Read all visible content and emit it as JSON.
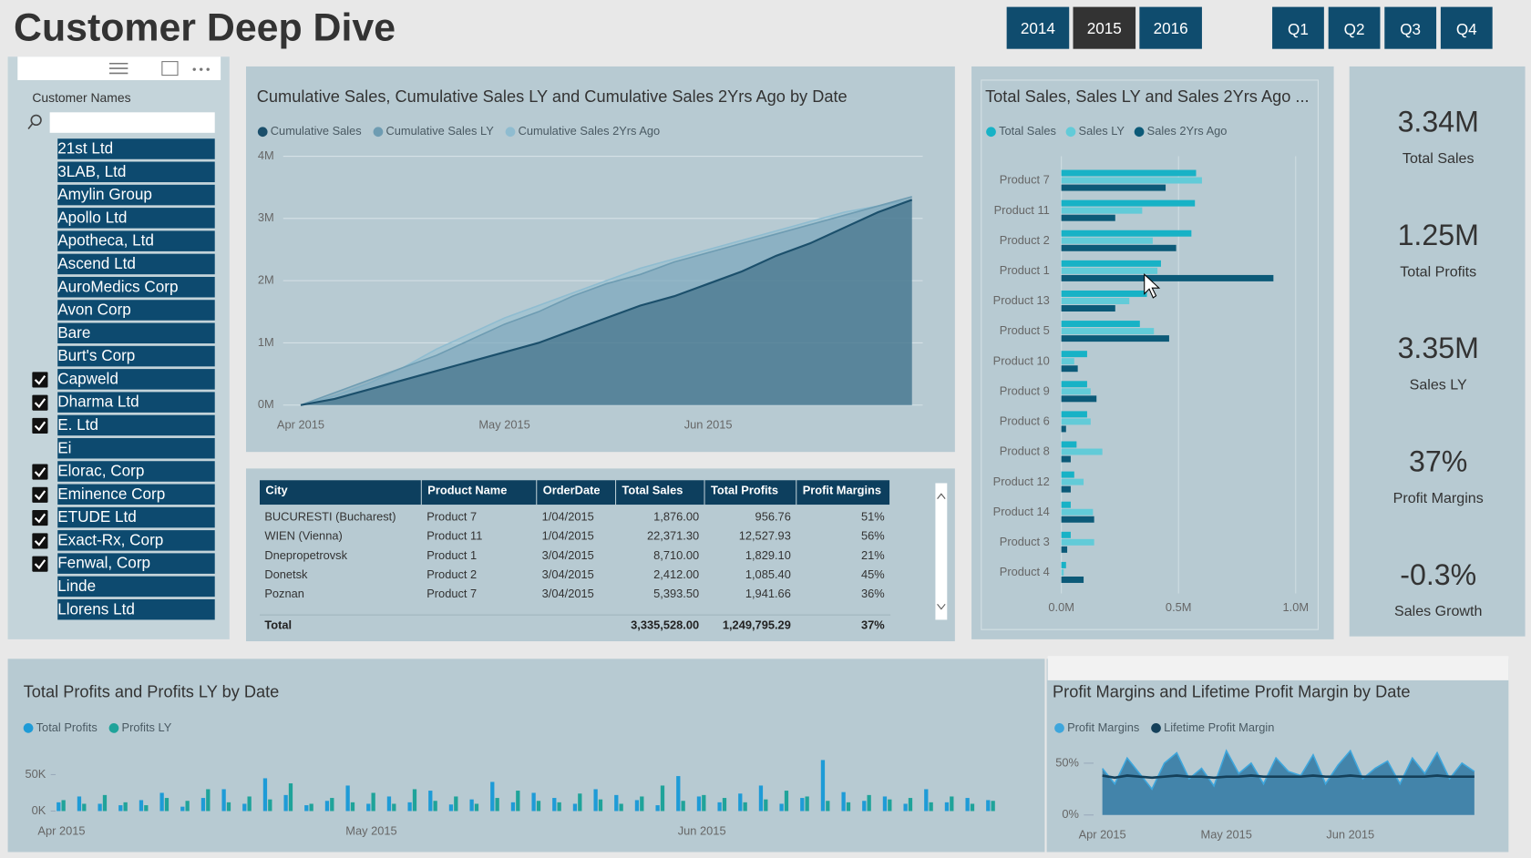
{
  "header": {
    "title": "Customer Deep Dive",
    "years": [
      "2014",
      "2015",
      "2016"
    ],
    "selected": "2015",
    "quarters": [
      "Q1",
      "Q2",
      "Q3",
      "Q4"
    ]
  },
  "slicer": {
    "label": "Customer Names",
    "items": [
      {
        "name": "21st Ltd",
        "checked": false
      },
      {
        "name": "3LAB, Ltd",
        "checked": false
      },
      {
        "name": "Amylin Group",
        "checked": false
      },
      {
        "name": "Apollo Ltd",
        "checked": false
      },
      {
        "name": "Apotheca, Ltd",
        "checked": false
      },
      {
        "name": "Ascend Ltd",
        "checked": false
      },
      {
        "name": "AuroMedics Corp",
        "checked": false
      },
      {
        "name": "Avon Corp",
        "checked": false
      },
      {
        "name": "Bare",
        "checked": false
      },
      {
        "name": "Burt's Corp",
        "checked": false
      },
      {
        "name": "Capweld",
        "checked": true
      },
      {
        "name": "Dharma Ltd",
        "checked": true
      },
      {
        "name": "E. Ltd",
        "checked": true
      },
      {
        "name": "Ei",
        "checked": false
      },
      {
        "name": "Elorac, Corp",
        "checked": true
      },
      {
        "name": "Eminence Corp",
        "checked": true
      },
      {
        "name": "ETUDE Ltd",
        "checked": true
      },
      {
        "name": "Exact-Rx, Corp",
        "checked": true
      },
      {
        "name": "Fenwal, Corp",
        "checked": true
      },
      {
        "name": "Linde",
        "checked": false
      },
      {
        "name": "Llorens Ltd",
        "checked": false
      }
    ]
  },
  "cumulative": {
    "type": "area",
    "title": "Cumulative Sales, Cumulative Sales LY and Cumulative Sales 2Yrs Ago by Date",
    "categories": [
      "Apr 2015",
      null,
      null,
      null,
      null,
      null,
      "May 2015",
      null,
      null,
      null,
      null,
      null,
      "Jun 2015",
      null,
      null,
      null,
      null,
      null,
      null
    ],
    "series": [
      {
        "name": "Cumulative Sales",
        "color": "#1b4f6b",
        "values": [
          0,
          0.1,
          0.25,
          0.4,
          0.55,
          0.7,
          0.85,
          1.0,
          1.2,
          1.4,
          1.6,
          1.75,
          1.95,
          2.15,
          2.4,
          2.6,
          2.85,
          3.1,
          3.3
        ]
      },
      {
        "name": "Cumulative Sales LY",
        "color": "#6e9cb2",
        "values": [
          0,
          0.2,
          0.4,
          0.6,
          0.8,
          1.05,
          1.3,
          1.5,
          1.75,
          1.95,
          2.1,
          2.3,
          2.45,
          2.6,
          2.75,
          2.9,
          3.05,
          3.2,
          3.35
        ]
      },
      {
        "name": "Cumulative Sales 2Yrs Ago",
        "color": "#8fbcd0",
        "values": [
          0,
          0.15,
          0.35,
          0.6,
          0.9,
          1.15,
          1.4,
          1.6,
          1.8,
          2.0,
          2.2,
          2.35,
          2.5,
          2.65,
          2.8,
          2.95,
          3.1,
          3.2,
          3.3
        ]
      }
    ],
    "ylim": [
      0,
      4
    ],
    "yticks": [
      {
        "value": 0,
        "label": "0M"
      },
      {
        "value": 1,
        "label": "1M"
      },
      {
        "value": 2,
        "label": "2M"
      },
      {
        "value": 3,
        "label": "3M"
      },
      {
        "value": 4,
        "label": "4M"
      }
    ],
    "grid": true
  },
  "table": {
    "columns": [
      "City",
      "Product Name",
      "OrderDate",
      "Total Sales",
      "Total Profits",
      "Profit Margins"
    ],
    "rows": [
      [
        "BUCURESTI (Bucharest)",
        "Product 7",
        "1/04/2015",
        "1,876.00",
        "956.76",
        "51%"
      ],
      [
        "WIEN (Vienna)",
        "Product 11",
        "1/04/2015",
        "22,371.30",
        "12,527.93",
        "56%"
      ],
      [
        "Dnepropetrovsk",
        "Product 1",
        "3/04/2015",
        "8,710.00",
        "1,829.10",
        "21%"
      ],
      [
        "Donetsk",
        "Product 2",
        "3/04/2015",
        "2,412.00",
        "1,085.40",
        "45%"
      ],
      [
        "Poznan",
        "Product 7",
        "3/04/2015",
        "5,393.50",
        "1,941.66",
        "36%"
      ]
    ],
    "total": {
      "label": "Total",
      "total_sales": "3,335,528.00",
      "total_profits": "1,249,795.29",
      "profit_margins": "37%"
    }
  },
  "product_sales": {
    "type": "hbar",
    "title": "Total Sales, Sales LY and Sales 2Yrs Ago ...",
    "categories": [
      "Product 7",
      "Product 11",
      "Product 2",
      "Product 1",
      "Product 13",
      "Product 5",
      "Product 10",
      "Product 9",
      "Product 6",
      "Product 8",
      "Product 12",
      "Product 14",
      "Product 3",
      "Product 4"
    ],
    "series": [
      {
        "name": "Total Sales",
        "color": "#17b2c6",
        "values": [
          0.575,
          0.57,
          0.555,
          0.425,
          0.365,
          0.335,
          0.11,
          0.11,
          0.11,
          0.065,
          0.055,
          0.04,
          0.04,
          0.02
        ]
      },
      {
        "name": "Sales LY",
        "color": "#62cbd8",
        "values": [
          0.6,
          0.345,
          0.39,
          0.41,
          0.29,
          0.395,
          0.055,
          0.125,
          0.125,
          0.175,
          0.095,
          0.135,
          0.14,
          0.01
        ]
      },
      {
        "name": "Sales 2Yrs Ago",
        "color": "#0c5a78",
        "values": [
          0.445,
          0.23,
          0.49,
          0.905,
          0.23,
          0.46,
          0.07,
          0.15,
          0.02,
          0.04,
          0.04,
          0.14,
          0.025,
          0.095
        ]
      }
    ],
    "xlim": [
      0,
      1
    ],
    "xticks": [
      {
        "value": 0,
        "label": "0.0M"
      },
      {
        "value": 0.5,
        "label": "0.5M"
      },
      {
        "value": 1,
        "label": "1.0M"
      }
    ],
    "grid": true
  },
  "kpis": [
    {
      "value": "3.34M",
      "label": "Total Sales"
    },
    {
      "value": "1.25M",
      "label": "Total Profits"
    },
    {
      "value": "3.35M",
      "label": "Sales LY"
    },
    {
      "value": "37%",
      "label": "Profit Margins"
    },
    {
      "value": "-0.3%",
      "label": "Sales Growth"
    }
  ],
  "profits": {
    "type": "bar",
    "title": "Total Profits and Profits LY by Date",
    "categories": [
      "Apr 2015",
      null,
      null,
      null,
      null,
      null,
      null,
      null,
      null,
      null,
      null,
      null,
      null,
      null,
      null,
      "May 2015",
      null,
      null,
      null,
      null,
      null,
      null,
      null,
      null,
      null,
      null,
      null,
      null,
      null,
      null,
      null,
      "Jun 2015",
      null,
      null,
      null,
      null,
      null,
      null,
      null,
      null,
      null,
      null,
      null,
      null,
      null,
      null
    ],
    "series": [
      {
        "name": "Total Profits",
        "color": "#1e9bd7",
        "values": [
          12,
          20,
          10,
          8,
          15,
          25,
          6,
          18,
          30,
          10,
          45,
          22,
          8,
          14,
          35,
          10,
          20,
          12,
          28,
          9,
          16,
          40,
          12,
          25,
          18,
          10,
          30,
          22,
          15,
          8,
          48,
          20,
          12,
          24,
          35,
          10,
          18,
          70,
          26,
          14,
          20,
          10,
          30,
          12,
          18,
          15
        ]
      },
      {
        "name": "Profits LY",
        "color": "#1fa39a",
        "values": [
          15,
          10,
          22,
          12,
          8,
          18,
          14,
          30,
          12,
          20,
          16,
          38,
          10,
          18,
          12,
          25,
          10,
          30,
          14,
          20,
          10,
          18,
          28,
          14,
          12,
          24,
          16,
          10,
          20,
          35,
          14,
          22,
          18,
          12,
          16,
          28,
          20,
          14,
          12,
          22,
          16,
          18,
          12,
          20,
          10,
          14
        ]
      }
    ],
    "ylim": [
      0,
      75
    ],
    "yticks": [
      {
        "value": 0,
        "label": "0K"
      },
      {
        "value": 50,
        "label": "50K"
      }
    ],
    "grid": false
  },
  "margins": {
    "type": "line",
    "title": "Profit Margins and Lifetime Profit Margin by Date",
    "categories": [
      "Apr 2015",
      null,
      null,
      null,
      null,
      null,
      null,
      null,
      null,
      null,
      "May 2015",
      null,
      null,
      null,
      null,
      null,
      null,
      null,
      null,
      null,
      "Jun 2015",
      null,
      null,
      null,
      null,
      null,
      null,
      null,
      null,
      null,
      null
    ],
    "series": [
      {
        "name": "Profit Margins",
        "color": "#3ea6dc",
        "values": [
          45,
          30,
          55,
          40,
          25,
          50,
          60,
          35,
          45,
          28,
          62,
          40,
          50,
          30,
          55,
          42,
          38,
          58,
          30,
          48,
          62,
          35,
          45,
          52,
          30,
          55,
          40,
          60,
          35,
          50,
          42
        ]
      },
      {
        "name": "Lifetime Profit Margin",
        "color": "#14405a",
        "values": [
          38,
          36,
          38,
          37,
          36,
          37,
          38,
          37,
          37,
          36,
          37,
          37,
          38,
          37,
          37,
          37,
          37,
          38,
          37,
          37,
          38,
          37,
          37,
          37,
          37,
          37,
          37,
          38,
          37,
          37,
          37
        ]
      }
    ],
    "ylim": [
      0,
      65
    ],
    "yticks": [
      {
        "value": 0,
        "label": "0%"
      },
      {
        "value": 50,
        "label": "50%"
      }
    ],
    "grid": false
  }
}
